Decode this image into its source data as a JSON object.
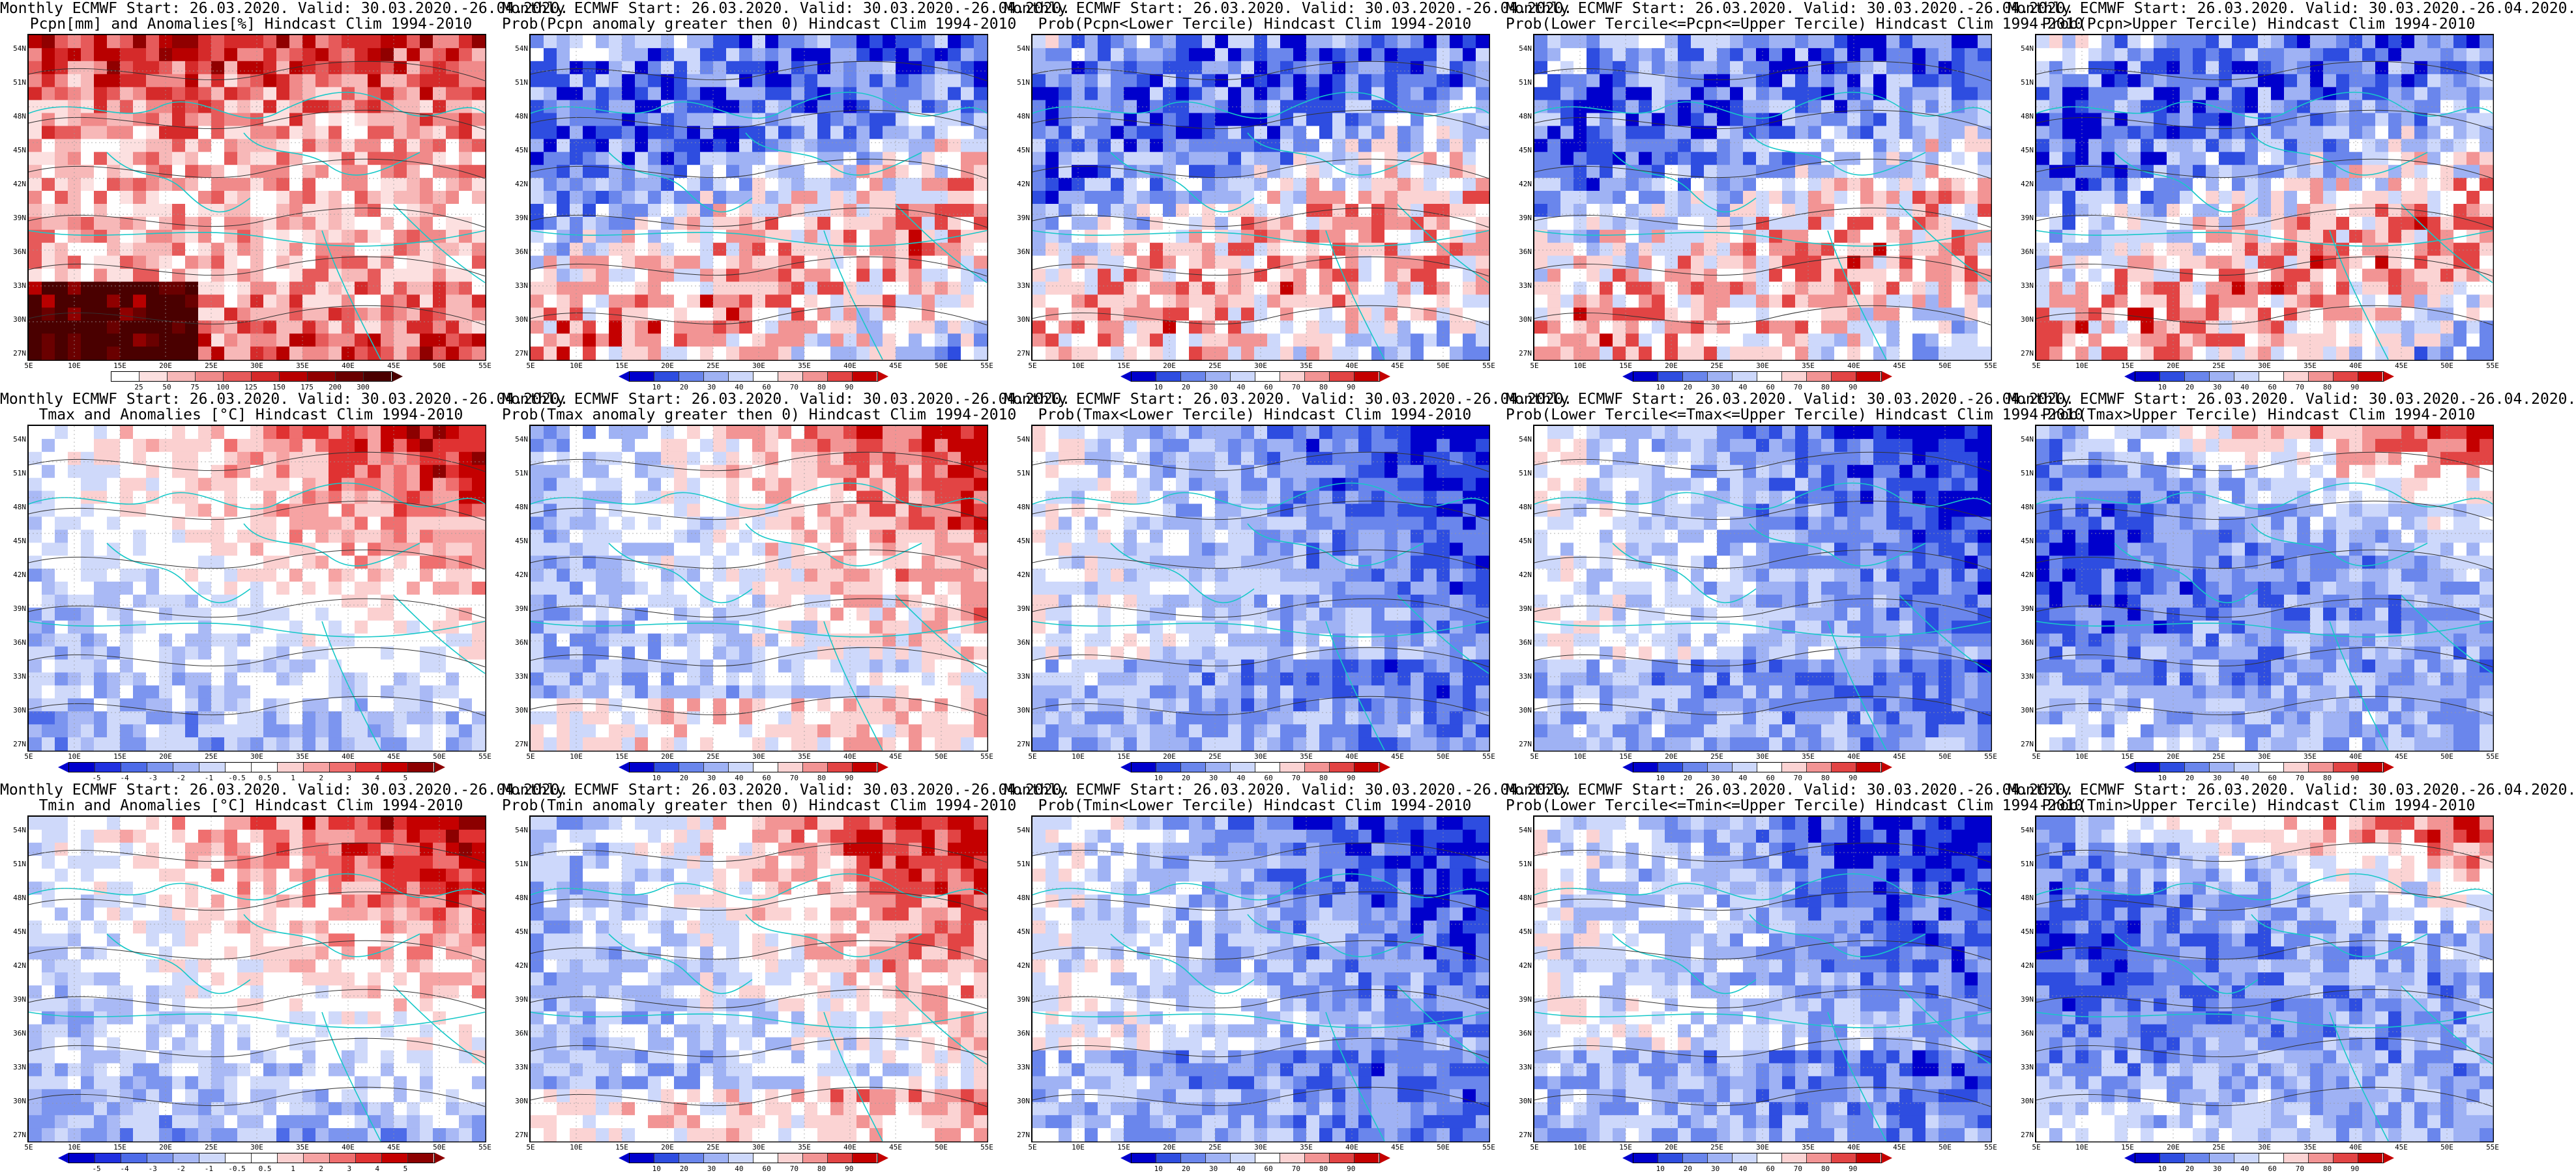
{
  "lat_labels": [
    "54N",
    "51N",
    "48N",
    "45N",
    "42N",
    "39N",
    "36N",
    "33N",
    "30N",
    "27N"
  ],
  "lon_labels": [
    "5E",
    "10E",
    "15E",
    "20E",
    "25E",
    "30E",
    "35E",
    "40E",
    "45E",
    "50E",
    "55E"
  ],
  "palettes": {
    "anomaly": [
      "#0000cc",
      "#2030e0",
      "#4d6be8",
      "#7c95ef",
      "#a9b9f5",
      "#cfd9fa",
      "#ffffff",
      "#ffffff",
      "#fbd0d0",
      "#f6a3a3",
      "#ef6f6f",
      "#e03232",
      "#c40000",
      "#8c0000"
    ],
    "prob": [
      "#0000cc",
      "#2e4de0",
      "#6a86ec",
      "#9fb2f4",
      "#cdd8fb",
      "#ffffff",
      "#fbd3d3",
      "#f29494",
      "#e24444",
      "#c40000"
    ],
    "pcpn": [
      "#ffffff",
      "#fce0e0",
      "#f7b8b8",
      "#f08a8a",
      "#e65a5a",
      "#d52a2a",
      "#b80000",
      "#900000",
      "#6a0000",
      "#4a0000"
    ]
  },
  "panels": [
    {
      "title1": "Monthly ECMWF Start: 26.03.2020. Valid: 30.03.2020.-26.04.2020.",
      "title2": "Pcpn[mm] and Anomalies[%] Hindcast Clim 1994-2010",
      "field": "pcpn_anom",
      "colorbar": "pcpn",
      "ticks": [
        "25",
        "50",
        "75",
        "100",
        "125",
        "150",
        "175",
        "200",
        "300"
      ]
    },
    {
      "title1": "Monthly ECMWF Start: 26.03.2020. Valid: 30.03.2020.-26.04.2020.",
      "title2": "Prob(Pcpn anomaly greater then 0) Hindcast Clim 1994-2010",
      "field": "prob",
      "colorbar": "prob",
      "ticks": [
        "10",
        "20",
        "30",
        "40",
        "60",
        "70",
        "80",
        "90"
      ]
    },
    {
      "title1": "Monthly ECMWF Start: 26.03.2020. Valid: 30.03.2020.-26.04.2020.",
      "title2": "Prob(Pcpn<Lower Tercile) Hindcast Clim 1994-2010",
      "field": "prob",
      "colorbar": "prob",
      "ticks": [
        "10",
        "20",
        "30",
        "40",
        "60",
        "70",
        "80",
        "90"
      ]
    },
    {
      "title1": "Monthly ECMWF Start: 26.03.2020. Valid: 30.03.2020.-26.04.2020.",
      "title2": "Prob(Lower Tercile<=Pcpn<=Upper Tercile) Hindcast Clim 1994-2010",
      "field": "prob",
      "colorbar": "prob",
      "ticks": [
        "10",
        "20",
        "30",
        "40",
        "60",
        "70",
        "80",
        "90"
      ]
    },
    {
      "title1": "Monthly ECMWF Start: 26.03.2020. Valid: 30.03.2020.-26.04.2020.",
      "title2": "Prob(Pcpn>Upper Tercile) Hindcast Clim 1994-2010",
      "field": "prob",
      "colorbar": "prob",
      "ticks": [
        "10",
        "20",
        "30",
        "40",
        "60",
        "70",
        "80",
        "90"
      ]
    },
    {
      "title1": "Monthly ECMWF Start: 26.03.2020. Valid: 30.03.2020.-26.04.2020.",
      "title2": "Tmax and Anomalies [°C] Hindcast Clim 1994-2010",
      "field": "anom_warm",
      "colorbar": "anomaly",
      "ticks": [
        "-5",
        "-4",
        "-3",
        "-2",
        "-1",
        "-0.5",
        "0.5",
        "1",
        "2",
        "3",
        "4",
        "5"
      ]
    },
    {
      "title1": "Monthly ECMWF Start: 26.03.2020. Valid: 30.03.2020.-26.04.2020.",
      "title2": "Prob(Tmax anomaly greater then 0) Hindcast Clim 1994-2010",
      "field": "prob_warm",
      "colorbar": "prob",
      "ticks": [
        "10",
        "20",
        "30",
        "40",
        "60",
        "70",
        "80",
        "90"
      ]
    },
    {
      "title1": "Monthly ECMWF Start: 26.03.2020. Valid: 30.03.2020.-26.04.2020.",
      "title2": "Prob(Tmax<Lower Tercile) Hindcast Clim 1994-2010",
      "field": "prob_cold",
      "colorbar": "prob",
      "ticks": [
        "10",
        "20",
        "30",
        "40",
        "60",
        "70",
        "80",
        "90"
      ]
    },
    {
      "title1": "Monthly ECMWF Start: 26.03.2020. Valid: 30.03.2020.-26.04.2020.",
      "title2": "Prob(Lower Tercile<=Tmax<=Upper Tercile) Hindcast Clim 1994-2010",
      "field": "prob_cold",
      "colorbar": "prob",
      "ticks": [
        "10",
        "20",
        "30",
        "40",
        "60",
        "70",
        "80",
        "90"
      ]
    },
    {
      "title1": "Monthly ECMWF Start: 26.03.2020. Valid: 30.03.2020.-26.04.2020.",
      "title2": "Prob(Tmax>Upper Tercile) Hindcast Clim 1994-2010",
      "field": "prob_mixed",
      "colorbar": "prob",
      "ticks": [
        "10",
        "20",
        "30",
        "40",
        "60",
        "70",
        "80",
        "90"
      ]
    },
    {
      "title1": "Monthly ECMWF Start: 26.03.2020. Valid: 30.03.2020.-26.04.2020.",
      "title2": "Tmin and Anomalies [°C] Hindcast Clim 1994-2010",
      "field": "anom_warm",
      "colorbar": "anomaly",
      "ticks": [
        "-5",
        "-4",
        "-3",
        "-2",
        "-1",
        "-0.5",
        "0.5",
        "1",
        "2",
        "3",
        "4",
        "5"
      ]
    },
    {
      "title1": "Monthly ECMWF Start: 26.03.2020. Valid: 30.03.2020.-26.04.2020.",
      "title2": "Prob(Tmin anomaly greater then 0) Hindcast Clim 1994-2010",
      "field": "prob_warm",
      "colorbar": "prob",
      "ticks": [
        "10",
        "20",
        "30",
        "40",
        "60",
        "70",
        "80",
        "90"
      ]
    },
    {
      "title1": "Monthly ECMWF Start: 26.03.2020. Valid: 30.03.2020.-26.04.2020.",
      "title2": "Prob(Tmin<Lower Tercile) Hindcast Clim 1994-2010",
      "field": "prob_cold",
      "colorbar": "prob",
      "ticks": [
        "10",
        "20",
        "30",
        "40",
        "60",
        "70",
        "80",
        "90"
      ]
    },
    {
      "title1": "Monthly ECMWF Start: 26.03.2020. Valid: 30.03.2020.-26.04.2020.",
      "title2": "Prob(Lower Tercile<=Tmin<=Upper Tercile) Hindcast Clim 1994-2010",
      "field": "prob_cold",
      "colorbar": "prob",
      "ticks": [
        "10",
        "20",
        "30",
        "40",
        "60",
        "70",
        "80",
        "90"
      ]
    },
    {
      "title1": "Monthly ECMWF Start: 26.03.2020. Valid: 30.03.2020.-26.04.2020.",
      "title2": "Prob(Tmin>Upper Tercile) Hindcast Clim 1994-2010",
      "field": "prob_mixed",
      "colorbar": "prob",
      "ticks": [
        "10",
        "20",
        "30",
        "40",
        "60",
        "70",
        "80",
        "90"
      ]
    }
  ]
}
